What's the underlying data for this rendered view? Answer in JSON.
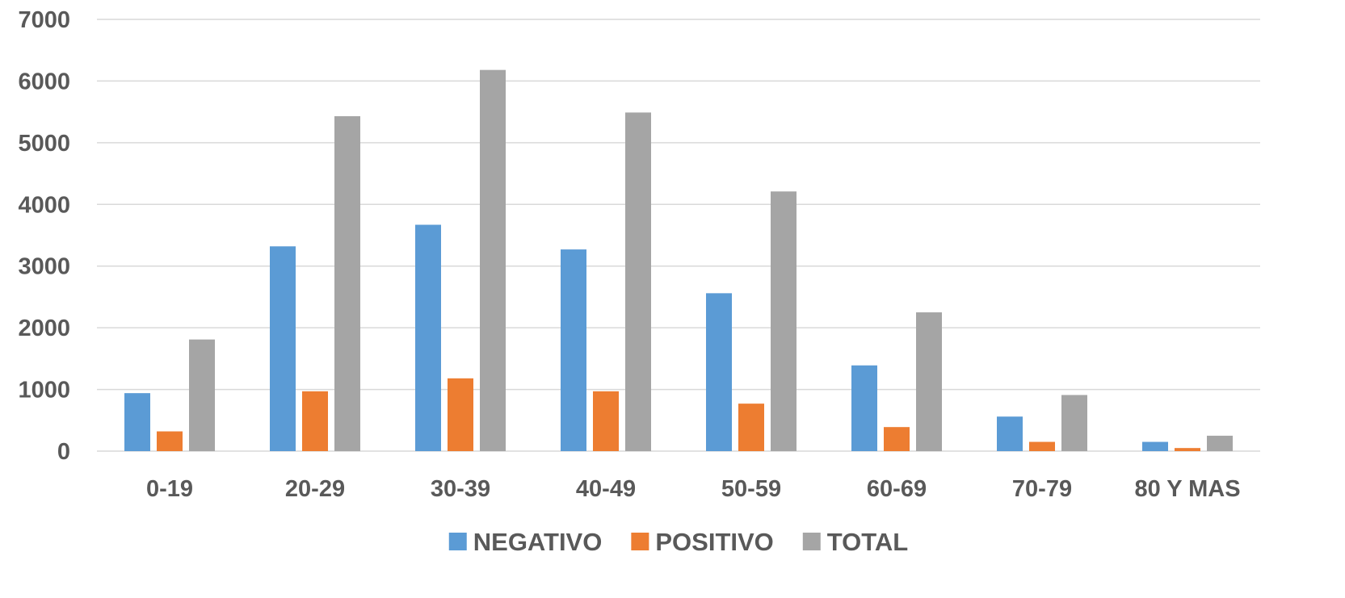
{
  "chart_data": {
    "type": "bar",
    "title": "",
    "xlabel": "",
    "ylabel": "",
    "categories": [
      "0-19",
      "20-29",
      "30-39",
      "40-49",
      "50-59",
      "60-69",
      "70-79",
      "80 Y MAS"
    ],
    "series": [
      {
        "name": "NEGATIVO",
        "color": "#5B9BD5",
        "values": [
          940,
          3320,
          3670,
          3270,
          2560,
          1390,
          560,
          150
        ]
      },
      {
        "name": "POSITIVO",
        "color": "#ED7D31",
        "values": [
          320,
          970,
          1180,
          970,
          770,
          390,
          150,
          50
        ]
      },
      {
        "name": "TOTAL",
        "color": "#A5A5A5",
        "values": [
          1810,
          5430,
          6180,
          5490,
          4210,
          2250,
          910,
          250
        ]
      }
    ],
    "yticks": [
      "0",
      "1000",
      "2000",
      "3000",
      "4000",
      "5000",
      "6000",
      "7000"
    ],
    "ylim": [
      0,
      7000
    ],
    "grid": true,
    "legend_position": "bottom"
  }
}
